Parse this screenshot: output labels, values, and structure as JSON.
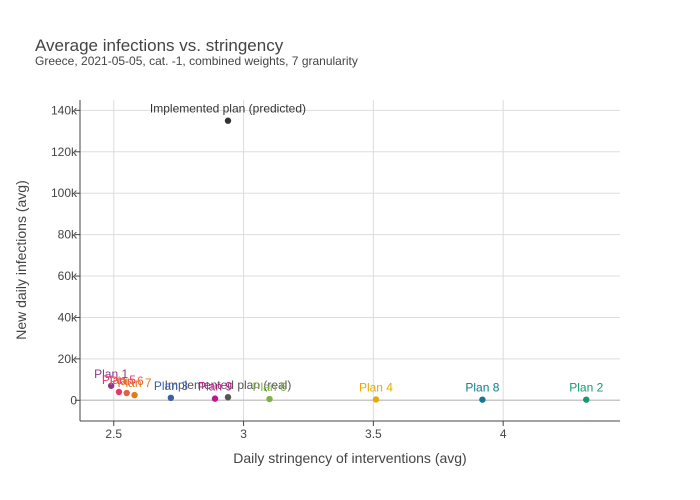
{
  "chart_data": {
    "type": "scatter",
    "title": "Average infections vs. stringency",
    "subtitle": "Greece, 2021-05-05, cat. -1, combined weights, 7 granularity",
    "xlabel": "Daily stringency of interventions (avg)",
    "ylabel": "New daily infections (avg)",
    "xlim": [
      2.37,
      4.45
    ],
    "ylim": [
      -10000,
      145000
    ],
    "xticks": [
      2.5,
      3,
      3.5,
      4
    ],
    "xtick_labels": [
      "2.5",
      "3",
      "3.5",
      "4"
    ],
    "yticks": [
      0,
      20000,
      40000,
      60000,
      80000,
      100000,
      120000,
      140000
    ],
    "ytick_labels": [
      "0",
      "20k",
      "40k",
      "60k",
      "80k",
      "100k",
      "120k",
      "140k"
    ],
    "grid": true,
    "points": [
      {
        "label": "Implemented plan (predicted)",
        "x": 2.94,
        "y": 135000,
        "color": "#333333"
      },
      {
        "label": "Implemented plan (real)",
        "x": 2.94,
        "y": 1500,
        "color": "#555555"
      },
      {
        "label": "Plan 1",
        "x": 2.49,
        "y": 7000,
        "color": "#8b3a8b"
      },
      {
        "label": "Plan 5",
        "x": 2.52,
        "y": 4000,
        "color": "#e8356b"
      },
      {
        "label": "Plan 6",
        "x": 2.55,
        "y": 3500,
        "color": "#e8603a"
      },
      {
        "label": "Plan 7",
        "x": 2.58,
        "y": 2500,
        "color": "#e07b12"
      },
      {
        "label": "Plan 3",
        "x": 2.72,
        "y": 1200,
        "color": "#3b5fa8"
      },
      {
        "label": "Plan 9",
        "x": 2.89,
        "y": 800,
        "color": "#c4138f"
      },
      {
        "label": "Plan 4",
        "x": 3.51,
        "y": 400,
        "color": "#e8a900"
      },
      {
        "label": "Plan 6",
        "x": 3.1,
        "y": 600,
        "color": "#7cb342"
      },
      {
        "label": "Plan 8",
        "x": 3.92,
        "y": 300,
        "color": "#0e7c8a"
      },
      {
        "label": "Plan 2",
        "x": 4.32,
        "y": 300,
        "color": "#159a6e"
      }
    ]
  }
}
